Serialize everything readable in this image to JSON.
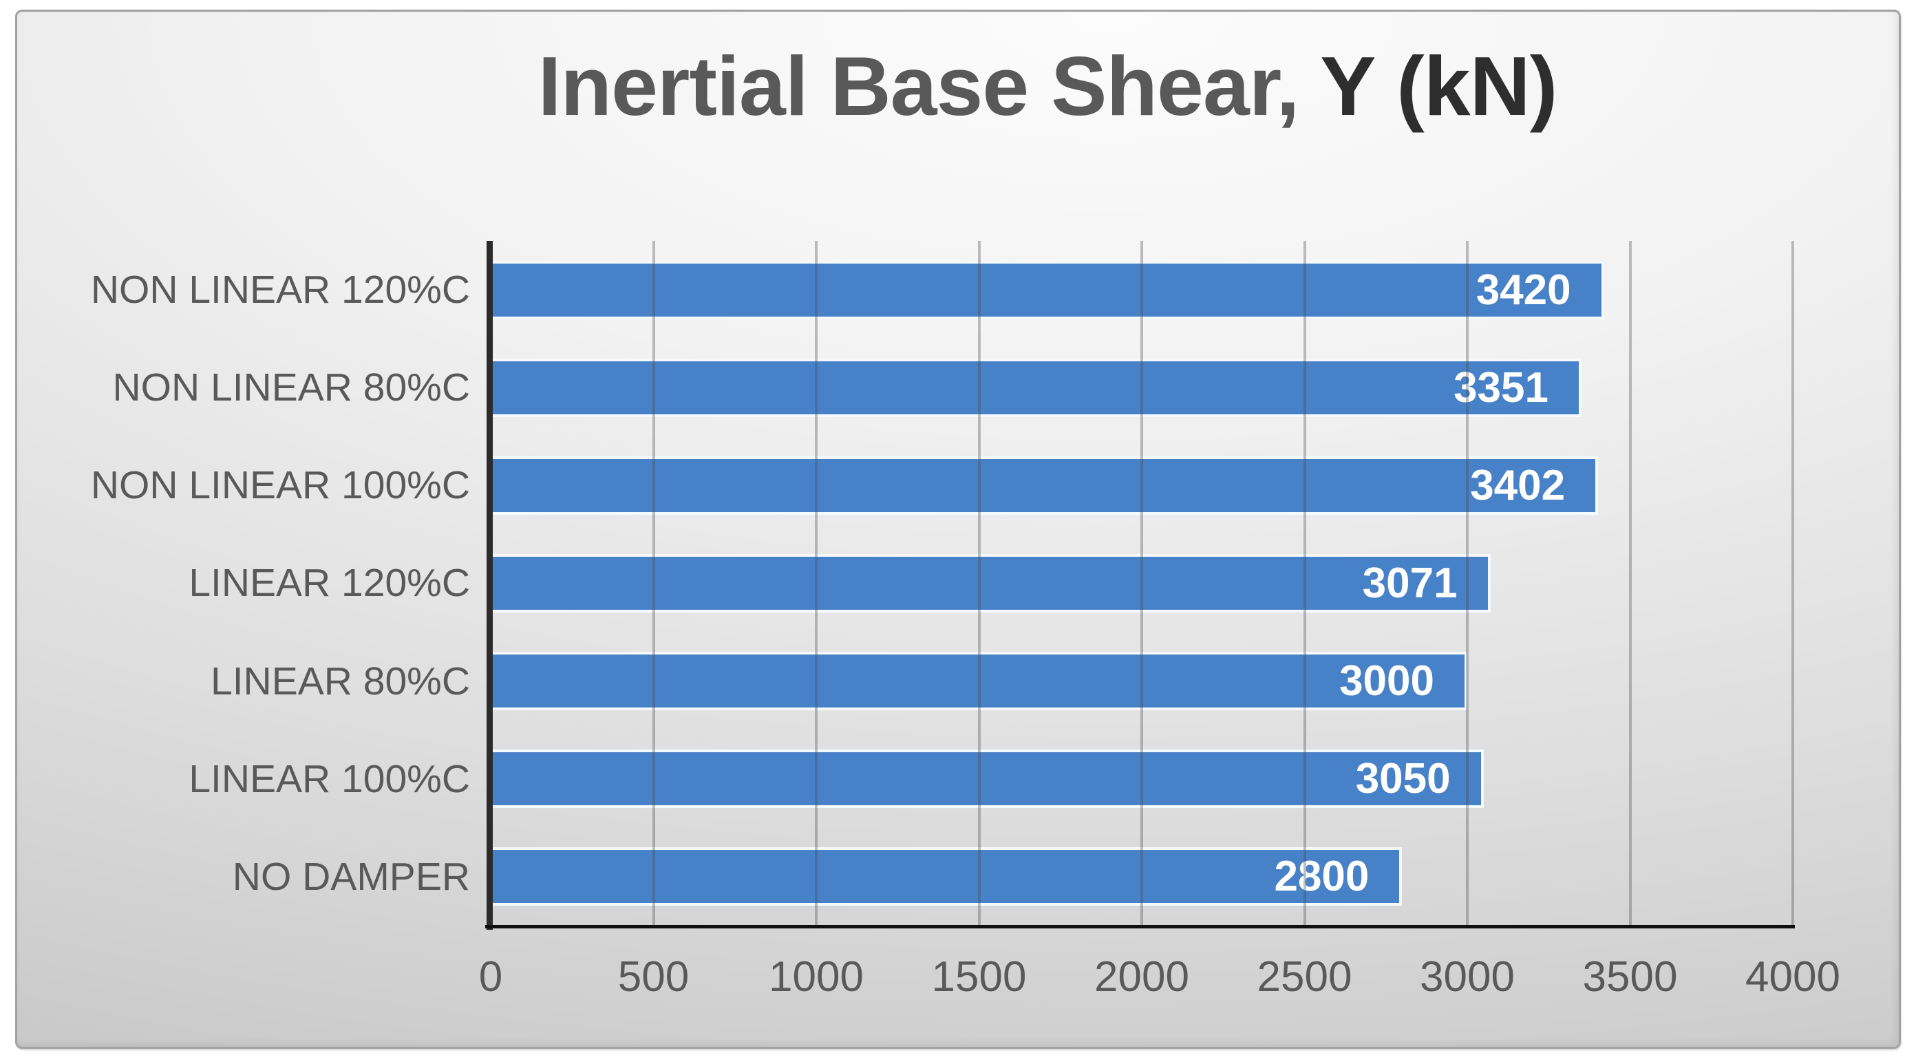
{
  "title": {
    "main": "Inertial Base Shear,",
    "unit": "Y (kN)"
  },
  "chart_data": {
    "type": "bar",
    "orientation": "horizontal",
    "title": "Inertial Base Shear, Y (kN)",
    "categories": [
      "NON LINEAR 120%C",
      "NON LINEAR 80%C",
      "NON LINEAR 100%C",
      "LINEAR 120%C",
      "LINEAR 80%C",
      "LINEAR 100%C",
      "NO DAMPER"
    ],
    "values": [
      3420,
      3351,
      3402,
      3071,
      3000,
      3050,
      2800
    ],
    "value_labels_position": "inside-end",
    "xlim": [
      0,
      4000
    ],
    "xticks": [
      0,
      500,
      1000,
      1500,
      2000,
      2500,
      3000,
      3500,
      4000
    ],
    "grid": true,
    "legend": false,
    "colors": {
      "bar": "#4781c7",
      "value_label": "#ffffff",
      "axis_text": "#595959",
      "title_main": "#595959",
      "title_unit": "#2e2e2e",
      "gridline": "#8f8f8f",
      "category_axis_line": "#2b2b2b",
      "value_axis_line": "#0f0f0f",
      "background_edge": "#c3c3c3",
      "background_center": "#fcfcfc"
    }
  }
}
